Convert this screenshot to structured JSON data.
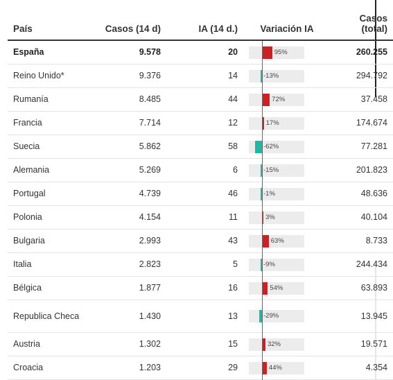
{
  "headers": {
    "country": "País",
    "cases14": "Casos (14 d)",
    "ia14": "IA (14 d.)",
    "var_ia": "Variación IA",
    "total": "Casos (total)"
  },
  "colors": {
    "increase": "#cc2027",
    "decrease": "#1fb8a4"
  },
  "rows": [
    {
      "country": "España",
      "cases14": "9.578",
      "ia": "20",
      "var_label": "95%",
      "var": 95,
      "total": "260.255",
      "bold": true
    },
    {
      "country": "Reino Unido*",
      "cases14": "9.376",
      "ia": "14",
      "var_label": "-13%",
      "var": -13,
      "total": "294.792"
    },
    {
      "country": "Rumanía",
      "cases14": "8.485",
      "ia": "44",
      "var_label": "72%",
      "var": 72,
      "total": "37.458"
    },
    {
      "country": "Francia",
      "cases14": "7.714",
      "ia": "12",
      "var_label": "17%",
      "var": 17,
      "total": "174.674"
    },
    {
      "country": "Suecia",
      "cases14": "5.862",
      "ia": "58",
      "var_label": "-62%",
      "var": -62,
      "total": "77.281"
    },
    {
      "country": "Alemania",
      "cases14": "5.269",
      "ia": "6",
      "var_label": "-15%",
      "var": -15,
      "total": "201.823"
    },
    {
      "country": "Portugal",
      "cases14": "4.739",
      "ia": "46",
      "var_label": "-1%",
      "var": -1,
      "total": "48.636"
    },
    {
      "country": "Polonia",
      "cases14": "4.154",
      "ia": "11",
      "var_label": "3%",
      "var": 3,
      "total": "40.104"
    },
    {
      "country": "Bulgaria",
      "cases14": "2.993",
      "ia": "43",
      "var_label": "63%",
      "var": 63,
      "total": "8.733"
    },
    {
      "country": "Italia",
      "cases14": "2.823",
      "ia": "5",
      "var_label": "-9%",
      "var": -9,
      "total": "244.434"
    },
    {
      "country": "Bélgica",
      "cases14": "1.877",
      "ia": "16",
      "var_label": "54%",
      "var": 54,
      "total": "63.893"
    },
    {
      "country": "Republica Checa",
      "cases14": "1.430",
      "ia": "13",
      "var_label": "-29%",
      "var": -29,
      "total": "13.945",
      "tall": true
    },
    {
      "country": "Austria",
      "cases14": "1.302",
      "ia": "15",
      "var_label": "32%",
      "var": 32,
      "total": "19.571"
    },
    {
      "country": "Croacia",
      "cases14": "1.203",
      "ia": "29",
      "var_label": "44%",
      "var": 44,
      "total": "4.354"
    }
  ]
}
